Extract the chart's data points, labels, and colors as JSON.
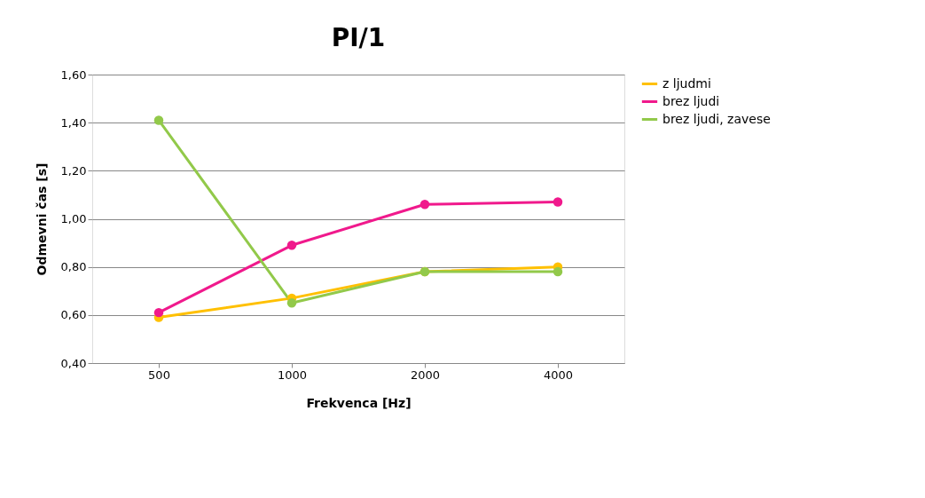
{
  "chart_data": {
    "type": "line",
    "title": "PI/1",
    "xlabel": "Frekvenca [Hz]",
    "ylabel": "Odmevni čas [s]",
    "categories": [
      "500",
      "1000",
      "2000",
      "4000"
    ],
    "series": [
      {
        "name": "z ljudmi",
        "color": "#ffc000",
        "values": [
          0.59,
          0.67,
          0.78,
          0.8
        ]
      },
      {
        "name": "brez ljudi",
        "color": "#f0198c",
        "values": [
          0.61,
          0.89,
          1.06,
          1.07
        ]
      },
      {
        "name": "brez ljudi, zavese",
        "color": "#92c94a",
        "values": [
          1.41,
          0.65,
          0.78,
          0.78
        ]
      }
    ],
    "ylim": [
      0.4,
      1.6
    ],
    "yticks": [
      {
        "value": 0.4,
        "label": "0,40"
      },
      {
        "value": 0.6,
        "label": "0,60"
      },
      {
        "value": 0.8,
        "label": "0,80"
      },
      {
        "value": 1.0,
        "label": "1,00"
      },
      {
        "value": 1.2,
        "label": "1,20"
      },
      {
        "value": 1.4,
        "label": "1,40"
      },
      {
        "value": 1.6,
        "label": "1,60"
      }
    ],
    "grid": "y",
    "legend": "right",
    "marker": "circle",
    "line_style": "solid"
  }
}
